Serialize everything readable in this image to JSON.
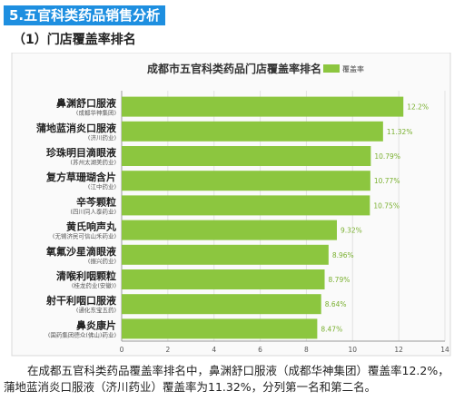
{
  "header": {
    "section_title": "5.五官科类药品销售分析",
    "sub_title": "（1）门店覆盖率排名"
  },
  "caption": "在成都五官科类药品覆盖率排名中，鼻渊舒口服液（成都华神集团）覆盖率12.2%，蒲地蓝消炎口服液（济川药业）覆盖率为11.32%，分列第一名和第二名。",
  "chart_data": {
    "type": "bar",
    "orientation": "horizontal",
    "title": "成都市五官科类药品门店覆盖率排名",
    "legend": {
      "label": "覆盖率",
      "position": "top-right"
    },
    "categories": [
      {
        "name": "鼻渊舒口服液",
        "maker": "(成都华神集团)"
      },
      {
        "name": "蒲地蓝消炎口服液",
        "maker": "(济川药业)"
      },
      {
        "name": "珍珠明目滴眼液",
        "maker": "(苏州太湖美药业)"
      },
      {
        "name": "复方草珊瑚含片",
        "maker": "(江中药业)"
      },
      {
        "name": "辛芩颗粒",
        "maker": "(四川同人泰药业)"
      },
      {
        "name": "黄氏响声丸",
        "maker": "(无锡济民可信山禾药业)"
      },
      {
        "name": "氧氟沙星滴眼液",
        "maker": "(振兴药业)"
      },
      {
        "name": "清喉利咽颗粒",
        "maker": "(桂龙药业(安徽))"
      },
      {
        "name": "射干利咽口服液",
        "maker": "(通化东宝五药)"
      },
      {
        "name": "鼻炎康片",
        "maker": "(国药集团德众(佛山)药业)"
      }
    ],
    "values": [
      12.2,
      11.32,
      10.79,
      10.77,
      10.75,
      9.32,
      8.96,
      8.79,
      8.64,
      8.47
    ],
    "value_labels": [
      "12.2%",
      "11.32%",
      "10.79%",
      "10.77%",
      "10.75%",
      "9.32%",
      "8.96%",
      "8.79%",
      "8.64%",
      "8.47%"
    ],
    "xlim": [
      0,
      14
    ],
    "xticks": [
      0,
      2,
      4,
      6,
      8,
      10,
      12,
      14
    ],
    "grid": true,
    "bar_color": "#8cc63f",
    "label_color": "#7ab030"
  }
}
